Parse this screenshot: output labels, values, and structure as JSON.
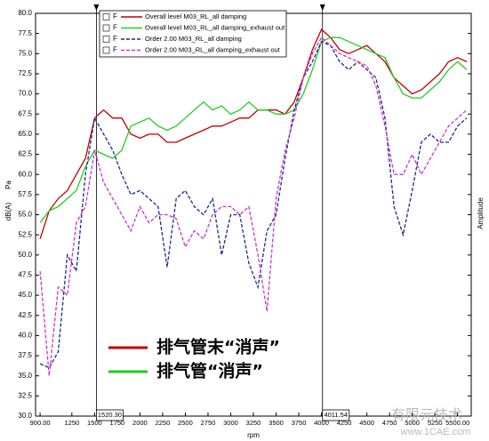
{
  "chart_data": {
    "type": "line",
    "x_label": "rpm",
    "y_label": "dB(A)",
    "y_unit": "Pa",
    "y2_label": "Amplitude",
    "legend_marker": "F",
    "x": [
      900,
      1000,
      1100,
      1200,
      1300,
      1400,
      1500,
      1600,
      1700,
      1800,
      1900,
      2000,
      2100,
      2200,
      2300,
      2400,
      2500,
      2600,
      2700,
      2800,
      2900,
      3000,
      3100,
      3200,
      3300,
      3400,
      3500,
      3600,
      3700,
      3800,
      3900,
      4000,
      4100,
      4200,
      4300,
      4400,
      4500,
      4600,
      4700,
      4800,
      4900,
      5000,
      5100,
      5200,
      5300,
      5400,
      5500,
      5600
    ],
    "series": [
      {
        "name": "Overall level M03_RL_all damping",
        "color": "#c00000",
        "dash": false,
        "values": [
          52,
          55.5,
          57,
          58,
          60,
          62,
          67,
          68,
          67,
          67,
          65,
          64.5,
          65,
          65,
          64,
          64,
          64.5,
          65,
          65.5,
          66,
          66,
          66.5,
          67,
          67,
          68,
          68,
          68,
          67.5,
          69,
          72,
          75.5,
          78,
          77,
          75.5,
          75,
          75.5,
          76,
          75,
          74,
          72,
          71,
          70,
          70.5,
          71.5,
          72.5,
          74,
          74.5,
          74
        ]
      },
      {
        "name": "Overall level M03_RL_all damping_exhaust out",
        "color": "#22cc22",
        "dash": false,
        "values": [
          54,
          55.5,
          56,
          57,
          58,
          61,
          63,
          62.5,
          62,
          63,
          66,
          66.5,
          67,
          66,
          65.5,
          66,
          67,
          68,
          69,
          68,
          68.5,
          67.5,
          68,
          69,
          68,
          68,
          67.5,
          67.5,
          68,
          70,
          73,
          76.5,
          77,
          77,
          76.5,
          76,
          75.5,
          75,
          74.5,
          72,
          70,
          69.5,
          69.5,
          70.5,
          71.5,
          73,
          74,
          73
        ]
      },
      {
        "name": "Order 2.00 M03_RL_all damping",
        "color": "#1a2a8c",
        "dash": true,
        "values": [
          36.5,
          36,
          38,
          50,
          48,
          60,
          67,
          65,
          63,
          60,
          57.5,
          58,
          57,
          56,
          48.5,
          57,
          58,
          56,
          55,
          57,
          50,
          55,
          55,
          49,
          46,
          53,
          55,
          62,
          68,
          72,
          74,
          76.5,
          76,
          74,
          73,
          74,
          73,
          72,
          67,
          56,
          52.5,
          58,
          64,
          65,
          64,
          64,
          66,
          67
        ]
      },
      {
        "name": "Order 2.00 M03_RL_all damping_exhaust out",
        "color": "#cc33cc",
        "dash": true,
        "values": [
          48,
          35,
          46,
          45,
          54,
          56,
          63,
          59,
          57,
          55,
          53,
          56,
          54,
          55,
          55,
          54.5,
          51,
          53,
          52,
          55,
          56,
          56,
          55,
          56,
          50,
          43,
          57,
          63,
          67,
          72,
          75,
          77,
          76,
          75,
          74.5,
          74,
          73.5,
          71,
          66,
          60,
          60,
          62.5,
          60,
          62,
          64,
          66,
          67,
          68
        ]
      }
    ],
    "xlim": [
      850,
      5650
    ],
    "xticks": [
      {
        "value": 900,
        "label": "900.00"
      },
      1250,
      1500,
      1750,
      2000,
      2250,
      2500,
      2750,
      3000,
      3250,
      3500,
      3750,
      4000,
      4250,
      4500,
      4750,
      5000,
      5250,
      {
        "value": 5500,
        "label": "5500.00"
      }
    ],
    "ylim": [
      30,
      80
    ],
    "yticks": [
      {
        "value": 30,
        "label": "30.0"
      },
      {
        "value": 32.5,
        "label": "32.5"
      },
      {
        "value": 35,
        "label": "35.0"
      },
      {
        "value": 37.5,
        "label": "37.5"
      },
      {
        "value": 40,
        "label": "40.0"
      },
      {
        "value": 42.5,
        "label": "42.5"
      },
      {
        "value": 45,
        "label": "45.0"
      },
      {
        "value": 47.5,
        "label": "47.5"
      },
      {
        "value": 50,
        "label": "50.0"
      },
      {
        "value": 52.5,
        "label": "52.5"
      },
      {
        "value": 55,
        "label": "55.0"
      },
      {
        "value": 57.5,
        "label": "57.5"
      },
      {
        "value": 60,
        "label": "60.0"
      },
      {
        "value": 62.5,
        "label": "62.5"
      },
      {
        "value": 65,
        "label": "65.0"
      },
      {
        "value": 67.5,
        "label": "67.5"
      },
      {
        "value": 70,
        "label": "70.0"
      },
      {
        "value": 72.5,
        "label": "72.5"
      },
      {
        "value": 75,
        "label": "75.0"
      },
      {
        "value": 77.5,
        "label": "77.5"
      },
      {
        "value": 80,
        "label": "80.0"
      }
    ],
    "grid": false,
    "cursors": [
      {
        "value": 1520.3,
        "label": "1520.30"
      },
      {
        "value": 4011.54,
        "label": "4011.54"
      }
    ],
    "annotations": [
      {
        "text": "排气管末“消声”",
        "color": "#c00000"
      },
      {
        "text": "排气管“消声”",
        "color": "#22cc22"
      }
    ],
    "watermark": "有限元技术",
    "watermark_url": "www.1CAE.com"
  }
}
